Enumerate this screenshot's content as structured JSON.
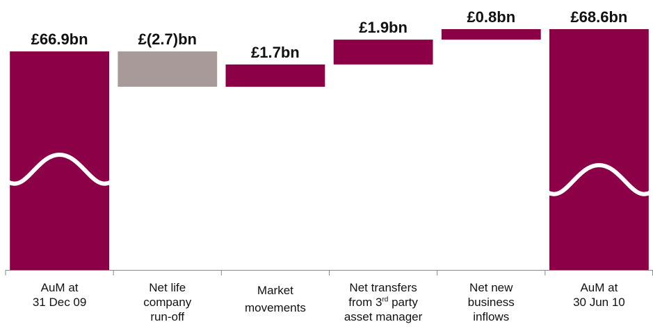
{
  "chart_data": {
    "type": "bar",
    "subtype": "waterfall",
    "unit": "£bn",
    "categories": [
      {
        "lines": [
          "AuM at",
          "31 Dec 09"
        ]
      },
      {
        "lines": [
          "Net life",
          "company",
          "run-off"
        ]
      },
      {
        "lines": [
          "Market",
          "movements"
        ]
      },
      {
        "lines": [
          "Net transfers",
          "from 3rd party",
          "asset manager"
        ]
      },
      {
        "lines": [
          "Net new",
          "business",
          "inflows"
        ]
      },
      {
        "lines": [
          "AuM at",
          "30 Jun 10"
        ]
      }
    ],
    "values": [
      66.9,
      -2.7,
      1.7,
      1.9,
      0.8,
      68.6
    ],
    "kinds": [
      "total",
      "delta",
      "delta",
      "delta",
      "delta",
      "total"
    ],
    "data_labels": [
      "£66.9bn",
      "£(2.7)bn",
      "£1.7bn",
      "£1.9bn",
      "£0.8bn",
      "£68.6bn"
    ],
    "axis_break": true,
    "gridlines": false,
    "colors": {
      "total": "#8c0048",
      "increase": "#8c0048",
      "decrease": "#a79a98",
      "axis": "#888888"
    }
  }
}
